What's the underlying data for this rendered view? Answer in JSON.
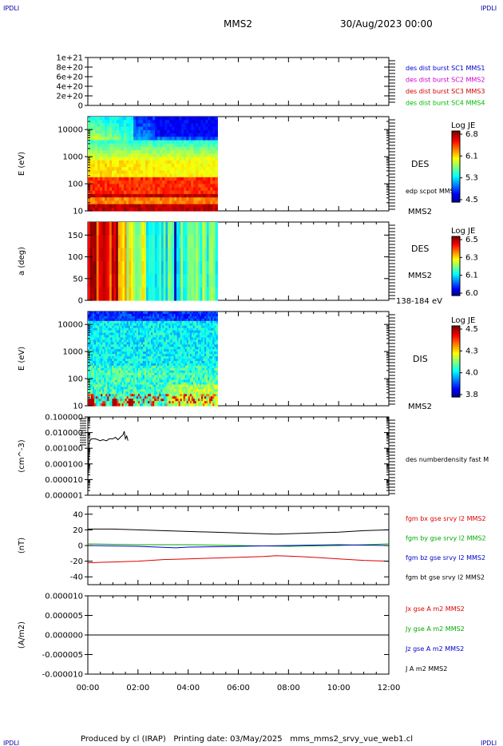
{
  "header": {
    "corner_left_top": "IPDLI",
    "corner_right_top": "IPDLI",
    "corner_left_bottom": "IPDLI",
    "corner_right_bottom": "IPDLI",
    "spacecraft": "MMS2",
    "datetime": "30/Aug/2023 00:00"
  },
  "footer": {
    "text": "Produced by cl (IRAP)   Printing date: 03/May/2025   mms_mms2_srvy_vue_web1.cl"
  },
  "colors": {
    "mms1": "#0000cc",
    "mms2": "#cc00cc",
    "mms3": "#cc0000",
    "mms4": "#00bb00",
    "bx": "#dd0000",
    "by": "#00aa00",
    "bz": "#0000cc",
    "bt": "#000000"
  },
  "chart_data": [
    {
      "id": "burst",
      "type": "line",
      "ylabel": "",
      "yticks": [
        "1e+21",
        "8e+20",
        "6e+20",
        "4e+20",
        "2e+20",
        "0"
      ],
      "ylim": [
        0,
        1e+21
      ],
      "legend": [
        "des dist burst SC1 MMS1",
        "des dist burst SC2 MMS2",
        "des dist burst SC3 MMS3",
        "des dist burst SC4 MMS4"
      ],
      "series": [
        {
          "name": "des dist burst SC4 MMS4",
          "x": [
            "00:00",
            "12:00"
          ],
          "y": [
            0,
            0
          ],
          "style": "dashed"
        }
      ]
    },
    {
      "id": "des_energy",
      "type": "heatmap",
      "ylabel": "E (eV)",
      "yticks": [
        "10000",
        "1000",
        "100",
        "10"
      ],
      "ylim": [
        10,
        30000
      ],
      "yscale": "log",
      "side_label": "DES",
      "sub_label": "edp scpot MMS2",
      "sc_label": "MMS2",
      "colorbar": {
        "title": "Log JE",
        "ticks": [
          "6.8",
          "6.1",
          "5.3",
          "4.5"
        ],
        "range": [
          4.5,
          6.9
        ]
      },
      "data_end": "05:10",
      "energy_profile_note": "peak JE near 20-40 eV and 200-800 eV, lower above 3000 eV"
    },
    {
      "id": "des_pitch",
      "type": "heatmap",
      "ylabel": "a (deg)",
      "yticks": [
        "150",
        "100",
        "50",
        "0"
      ],
      "ylim": [
        0,
        180
      ],
      "side_label": "DES",
      "sc_label": "MMS2",
      "range_label": "138-184 eV",
      "colorbar": {
        "title": "Log JE",
        "ticks": [
          "6.5",
          "6.3",
          "6.1",
          "6.0"
        ],
        "range": [
          6.0,
          6.55
        ]
      },
      "data_end": "05:10"
    },
    {
      "id": "dis_energy",
      "type": "heatmap",
      "ylabel": "E (eV)",
      "yticks": [
        "10000",
        "1000",
        "100",
        "10"
      ],
      "ylim": [
        10,
        30000
      ],
      "yscale": "log",
      "side_label": "DIS",
      "sc_label": "MMS2",
      "colorbar": {
        "title": "Log JE",
        "ticks": [
          "4.5",
          "4.3",
          "4.0",
          "3.8"
        ],
        "range": [
          3.8,
          4.6
        ]
      },
      "data_end": "05:10"
    },
    {
      "id": "density",
      "type": "line",
      "ylabel": "(cm^-3)",
      "yticks": [
        "0.100000",
        "0.010000",
        "0.001000",
        "0.000100",
        "0.000010",
        "0.000001"
      ],
      "ylim": [
        1e-06,
        0.1
      ],
      "yscale": "log",
      "legend": [
        "des numberdensity fast M"
      ],
      "series": [
        {
          "name": "des numberdensity fast M",
          "x": [
            0.0,
            0.03,
            0.05,
            0.08,
            0.15,
            0.3,
            0.5,
            0.6,
            0.75,
            0.85,
            1.0,
            1.1,
            1.2,
            1.3,
            1.35,
            1.4,
            1.45,
            1.5,
            1.55,
            1.6
          ],
          "y": [
            1e-05,
            0.0001,
            0.002,
            0.003,
            0.004,
            0.004,
            0.003,
            0.0035,
            0.003,
            0.004,
            0.004,
            0.005,
            0.0035,
            0.005,
            0.006,
            0.007,
            0.012,
            0.004,
            0.006,
            0.003
          ]
        }
      ]
    },
    {
      "id": "bfield",
      "type": "line",
      "ylabel": "(nT)",
      "yticks": [
        "40",
        "20",
        "0",
        "-20",
        "-40"
      ],
      "ylim": [
        -50,
        50
      ],
      "legend": [
        "fgm bx gse srvy l2 MMS2",
        "fgm by gse srvy l2 MMS2",
        "fgm bz gse srvy l2 MMS2",
        "fgm bt gse srvy l2 MMS2"
      ],
      "series": [
        {
          "name": "fgm bx gse srvy l2 MMS2",
          "x": [
            0,
            1,
            2,
            3,
            4,
            5,
            6,
            7,
            7.5,
            8,
            9,
            10,
            11,
            12
          ],
          "y": [
            -22,
            -21,
            -20,
            -18,
            -17,
            -16,
            -15,
            -14,
            -13,
            -13.5,
            -15,
            -17,
            -19,
            -20
          ]
        },
        {
          "name": "fgm by gse srvy l2 MMS2",
          "x": [
            0,
            2,
            4,
            6,
            8,
            10,
            11,
            12
          ],
          "y": [
            2,
            1,
            1,
            0,
            -1,
            0,
            1,
            2
          ]
        },
        {
          "name": "fgm bz gse srvy l2 MMS2",
          "x": [
            0,
            2,
            3.5,
            4,
            6,
            8,
            10,
            12
          ],
          "y": [
            0,
            -1,
            -3,
            -2,
            -1,
            0,
            1,
            0
          ]
        },
        {
          "name": "fgm bt gse srvy l2 MMS2",
          "x": [
            0,
            1,
            2,
            3,
            4,
            5,
            6,
            7,
            7.5,
            8,
            9,
            10,
            11,
            12
          ],
          "y": [
            21,
            21,
            20,
            19,
            18,
            17,
            16,
            15,
            14.5,
            15,
            16,
            17,
            19,
            20
          ]
        }
      ]
    },
    {
      "id": "current",
      "type": "line",
      "ylabel": "(A/m2)",
      "yticks": [
        "0.000010",
        "0.000005",
        "0.000000",
        "-0.000005",
        "-0.000010"
      ],
      "ylim": [
        -1e-05,
        1e-05
      ],
      "legend": [
        "Jx gse A m2 MMS2",
        "Jy gse A m2 MMS2",
        "Jz gse A m2 MMS2",
        "J A m2 MMS2"
      ],
      "series": [
        {
          "name": "J A m2 MMS2",
          "x": [
            0,
            12
          ],
          "y": [
            0,
            0
          ]
        }
      ]
    }
  ],
  "xaxis": {
    "ticks": [
      "00:00",
      "02:00",
      "04:00",
      "06:00",
      "08:00",
      "10:00",
      "12:00"
    ],
    "range_hours": [
      0,
      12
    ]
  }
}
